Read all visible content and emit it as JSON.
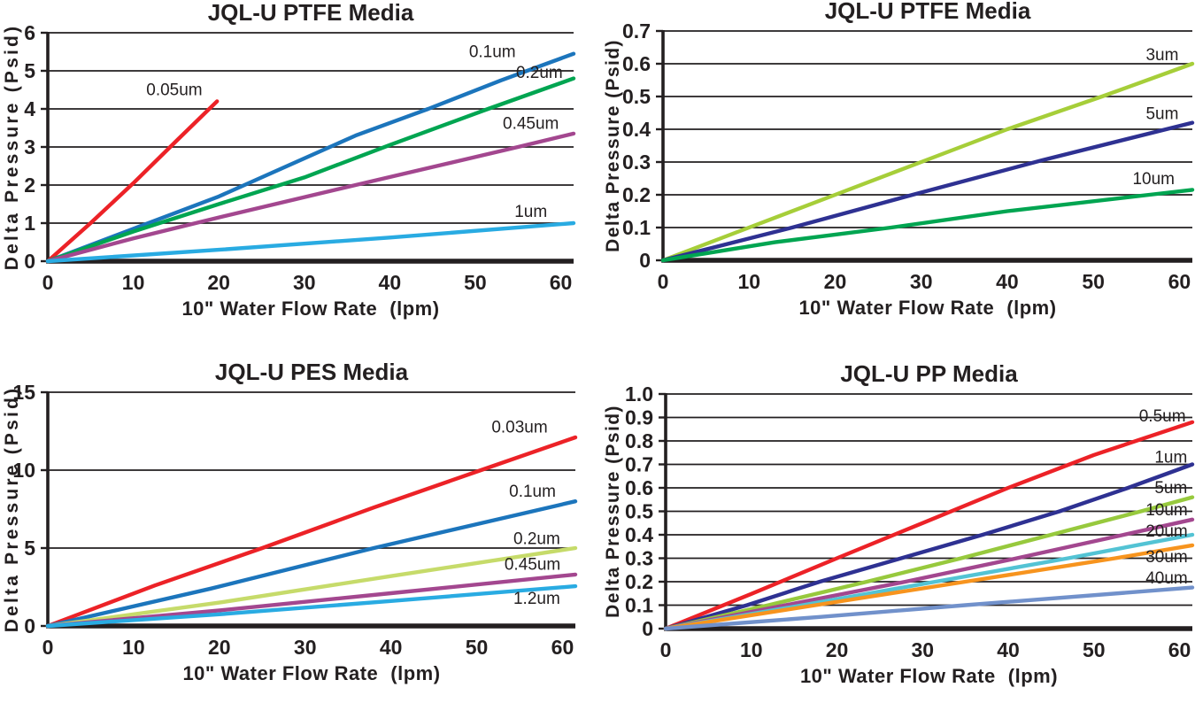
{
  "page": {
    "background": "#ffffff",
    "text_color": "#231F20"
  },
  "chart_data": [
    {
      "type": "line",
      "title": "JQL-U PTFE Media",
      "xlabel": "10\" Water Flow Rate",
      "xlabel_unit": "(lpm)",
      "ylabel": "Delta Pressure (Psid)",
      "xlim": [
        0,
        61.5
      ],
      "ylim": [
        0,
        6
      ],
      "xticks": [
        0,
        10,
        20,
        30,
        40,
        50,
        60
      ],
      "xtick_labels": [
        "0",
        "10",
        "20",
        "30",
        "40",
        "50",
        "60"
      ],
      "yticks": [
        0,
        1,
        2,
        3,
        4,
        5,
        6
      ],
      "ytick_labels": [
        "0",
        "1",
        "2",
        "3",
        "4",
        "5",
        "6"
      ],
      "grid": true,
      "legend_position": "inline-labels",
      "series": [
        {
          "name": "0.05um",
          "color": "#EC2227",
          "points": [
            [
              0,
              0
            ],
            [
              5,
              1.0
            ],
            [
              10,
              2.05
            ],
            [
              15,
              3.15
            ],
            [
              19.8,
              4.2
            ]
          ],
          "label": {
            "x": 14.8,
            "y": 4.5
          }
        },
        {
          "name": "0.1um",
          "color": "#1C75BC",
          "points": [
            [
              0,
              0
            ],
            [
              10,
              0.85
            ],
            [
              20,
              1.7
            ],
            [
              28,
              2.5
            ],
            [
              36,
              3.3
            ],
            [
              44.5,
              4.0
            ],
            [
              53,
              4.75
            ],
            [
              61.5,
              5.45
            ]
          ],
          "label": {
            "x": 52,
            "y": 5.5
          }
        },
        {
          "name": "0.2um",
          "color": "#00A551",
          "points": [
            [
              0,
              0
            ],
            [
              10,
              0.78
            ],
            [
              20,
              1.5
            ],
            [
              30,
              2.2
            ],
            [
              40,
              3.05
            ],
            [
              51.5,
              4.0
            ],
            [
              61.5,
              4.8
            ]
          ],
          "label": {
            "x": 57.5,
            "y": 4.95
          }
        },
        {
          "name": "0.45um",
          "color": "#A3478F",
          "points": [
            [
              0,
              0
            ],
            [
              10,
              0.6
            ],
            [
              20,
              1.15
            ],
            [
              36,
              2.0
            ],
            [
              55,
              3.0
            ],
            [
              61.5,
              3.35
            ]
          ],
          "label": {
            "x": 56.5,
            "y": 3.62
          }
        },
        {
          "name": "1um",
          "color": "#29ABE2",
          "points": [
            [
              0,
              0
            ],
            [
              20,
              0.3
            ],
            [
              40,
              0.62
            ],
            [
              61.5,
              1.0
            ]
          ],
          "label": {
            "x": 56.5,
            "y": 1.3
          }
        }
      ]
    },
    {
      "type": "line",
      "title": "JQL-U PTFE Media",
      "xlabel": "10\" Water Flow Rate",
      "xlabel_unit": "(lpm)",
      "ylabel": "Delta Pressure (Psid)",
      "xlim": [
        0,
        61.5
      ],
      "ylim": [
        0,
        0.7
      ],
      "xticks": [
        0,
        10,
        20,
        30,
        40,
        50,
        60
      ],
      "xtick_labels": [
        "0",
        "10",
        "20",
        "30",
        "40",
        "50",
        "60"
      ],
      "yticks": [
        0,
        0.1,
        0.2,
        0.3,
        0.4,
        0.5,
        0.6,
        0.7
      ],
      "ytick_labels": [
        "0",
        "0.1",
        "0.2",
        "0.3",
        "0.4",
        "0.5",
        "0.6",
        "0.7"
      ],
      "grid": true,
      "legend_position": "inline-labels",
      "series": [
        {
          "name": "3um",
          "color": "#A6CE39",
          "points": [
            [
              0,
              0
            ],
            [
              10,
              0.1
            ],
            [
              20,
              0.2
            ],
            [
              30,
              0.3
            ],
            [
              40,
              0.4
            ],
            [
              51,
              0.5
            ],
            [
              61.5,
              0.6
            ]
          ],
          "label": {
            "x": 58,
            "y": 0.627
          }
        },
        {
          "name": "5um",
          "color": "#2E3192",
          "points": [
            [
              0,
              0
            ],
            [
              15,
              0.1
            ],
            [
              29,
              0.2
            ],
            [
              44,
              0.305
            ],
            [
              61.5,
              0.42
            ]
          ],
          "label": {
            "x": 58,
            "y": 0.447
          }
        },
        {
          "name": "10um",
          "color": "#00A551",
          "points": [
            [
              0,
              0
            ],
            [
              13,
              0.055
            ],
            [
              26.5,
              0.1
            ],
            [
              40,
              0.15
            ],
            [
              56.5,
              0.2
            ],
            [
              61.5,
              0.215
            ]
          ],
          "label": {
            "x": 57,
            "y": 0.248
          }
        }
      ]
    },
    {
      "type": "line",
      "title": "JQL-U PES Media",
      "xlabel": "10\" Water Flow Rate",
      "xlabel_unit": "(lpm)",
      "ylabel": "Delta Pressure (Psid)",
      "xlim": [
        0,
        61.5
      ],
      "ylim": [
        0,
        15
      ],
      "xticks": [
        0,
        10,
        20,
        30,
        40,
        50,
        60
      ],
      "xtick_labels": [
        "0",
        "10",
        "20",
        "30",
        "40",
        "50",
        "60"
      ],
      "yticks": [
        0,
        5,
        10,
        15
      ],
      "ytick_labels": [
        "0",
        "5",
        "10",
        "15"
      ],
      "grid": true,
      "legend_position": "inline-labels",
      "series": [
        {
          "name": "0.03um",
          "color": "#EC2227",
          "points": [
            [
              0,
              0
            ],
            [
              12.5,
              2.6
            ],
            [
              25,
              5.0
            ],
            [
              38,
              7.6
            ],
            [
              50.5,
              10.0
            ],
            [
              61.5,
              12.1
            ]
          ],
          "label": {
            "x": 55,
            "y": 12.75
          }
        },
        {
          "name": "0.1um",
          "color": "#1C75BC",
          "points": [
            [
              0,
              0
            ],
            [
              19,
              2.4
            ],
            [
              38,
              5.0
            ],
            [
              61.5,
              8.0
            ]
          ],
          "label": {
            "x": 56.5,
            "y": 8.65
          }
        },
        {
          "name": "0.2um",
          "color": "#C6DB6A",
          "points": [
            [
              0,
              0
            ],
            [
              20,
              1.5
            ],
            [
              40,
              3.2
            ],
            [
              61.5,
              5.0
            ]
          ],
          "label": {
            "x": 57,
            "y": 5.6
          }
        },
        {
          "name": "0.45um",
          "color": "#A3478F",
          "points": [
            [
              0,
              0
            ],
            [
              20,
              1.0
            ],
            [
              40,
              2.1
            ],
            [
              61.5,
              3.3
            ]
          ],
          "label": {
            "x": 56.5,
            "y": 3.95
          }
        },
        {
          "name": "1.2um",
          "color": "#29ABE2",
          "points": [
            [
              0,
              0
            ],
            [
              20,
              0.75
            ],
            [
              40,
              1.6
            ],
            [
              61.5,
              2.55
            ]
          ],
          "label": {
            "x": 57,
            "y": 1.75
          }
        }
      ]
    },
    {
      "type": "line",
      "title": "JQL-U PP Media",
      "xlabel": "10\" Water Flow Rate",
      "xlabel_unit": "(lpm)",
      "ylabel": "Delta Pressure (Psid)",
      "xlim": [
        0,
        61.5
      ],
      "ylim": [
        0,
        1.0
      ],
      "xticks": [
        0,
        10,
        20,
        30,
        40,
        50,
        60
      ],
      "xtick_labels": [
        "0",
        "10",
        "20",
        "30",
        "40",
        "50",
        "60"
      ],
      "yticks": [
        0,
        0.1,
        0.2,
        0.3,
        0.4,
        0.5,
        0.6,
        0.7,
        0.8,
        0.9,
        1.0
      ],
      "ytick_labels": [
        "0",
        "0.1",
        "0.2",
        "0.3",
        "0.4",
        "0.5",
        "0.6",
        "0.7",
        "0.8",
        "0.9",
        "1.0"
      ],
      "grid": true,
      "legend_position": "inline-labels",
      "series": [
        {
          "name": "0.5um",
          "color": "#EC2227",
          "points": [
            [
              0,
              0
            ],
            [
              10,
              0.148
            ],
            [
              20,
              0.3
            ],
            [
              30,
              0.45
            ],
            [
              40,
              0.6
            ],
            [
              50,
              0.74
            ],
            [
              61.5,
              0.88
            ]
          ],
          "label": {
            "x": 58,
            "y": 0.905
          }
        },
        {
          "name": "1um",
          "color": "#2E3192",
          "points": [
            [
              0,
              0
            ],
            [
              9.5,
              0.1
            ],
            [
              18,
              0.2
            ],
            [
              27.5,
              0.3
            ],
            [
              37,
              0.4
            ],
            [
              46,
              0.5
            ],
            [
              54,
              0.6
            ],
            [
              61.5,
              0.7
            ]
          ],
          "label": {
            "x": 59,
            "y": 0.73
          }
        },
        {
          "name": "5um",
          "color": "#97C93D",
          "points": [
            [
              0,
              0
            ],
            [
              12,
              0.1
            ],
            [
              23.5,
              0.2
            ],
            [
              34.5,
              0.3
            ],
            [
              45,
              0.4
            ],
            [
              55.5,
              0.5
            ],
            [
              61.5,
              0.56
            ]
          ],
          "label": {
            "x": 59,
            "y": 0.6
          }
        },
        {
          "name": "10um",
          "color": "#A3478F",
          "points": [
            [
              0,
              0
            ],
            [
              14,
              0.1
            ],
            [
              28,
              0.2
            ],
            [
              41,
              0.3
            ],
            [
              53.5,
              0.4
            ],
            [
              61.5,
              0.465
            ]
          ],
          "label": {
            "x": 58.5,
            "y": 0.505
          }
        },
        {
          "name": "20um",
          "color": "#53C3D4",
          "points": [
            [
              0,
              0
            ],
            [
              16,
              0.1
            ],
            [
              31.5,
              0.2
            ],
            [
              47,
              0.3
            ],
            [
              61.5,
              0.4
            ]
          ],
          "label": {
            "x": 58.5,
            "y": 0.415
          }
        },
        {
          "name": "30um",
          "color": "#F7941E",
          "points": [
            [
              0,
              0
            ],
            [
              17.5,
              0.1
            ],
            [
              35,
              0.2
            ],
            [
              52.5,
              0.3
            ],
            [
              61.5,
              0.355
            ]
          ],
          "label": {
            "x": 58.5,
            "y": 0.305
          }
        },
        {
          "name": "40um",
          "color": "#7191CB",
          "points": [
            [
              0,
              0
            ],
            [
              18,
              0.05
            ],
            [
              35,
              0.1
            ],
            [
              61.5,
              0.175
            ]
          ],
          "label": {
            "x": 58.5,
            "y": 0.215
          }
        }
      ]
    }
  ]
}
